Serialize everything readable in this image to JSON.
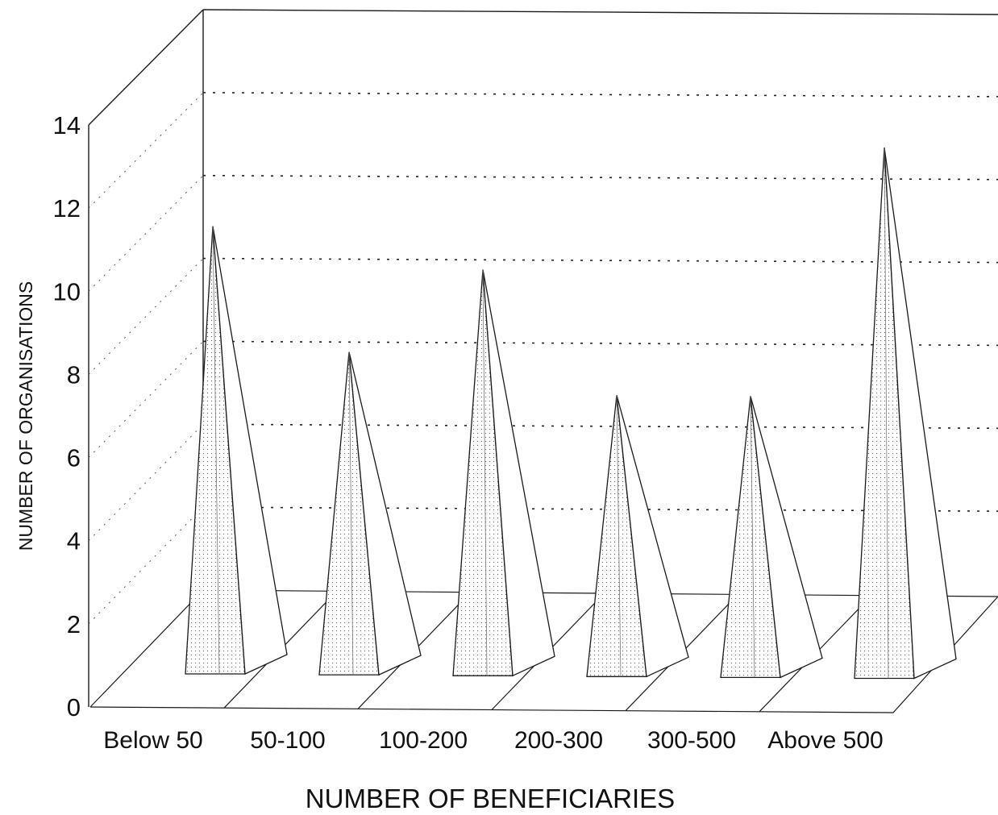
{
  "chart_data": {
    "type": "bar",
    "style": "3d-pyramid",
    "categories": [
      "Below 50",
      "50-100",
      "100-200",
      "200-300",
      "300-500",
      "Above 500"
    ],
    "values": [
      11,
      8,
      10,
      7,
      7,
      13
    ],
    "xlabel": "NUMBER OF BENEFICIARIES",
    "ylabel": "NUMBER OF ORGANISATIONS",
    "ylim": [
      0,
      14
    ],
    "yticks": [
      "0",
      "2",
      "4",
      "6",
      "8",
      "10",
      "12",
      "14"
    ],
    "grid": true
  }
}
